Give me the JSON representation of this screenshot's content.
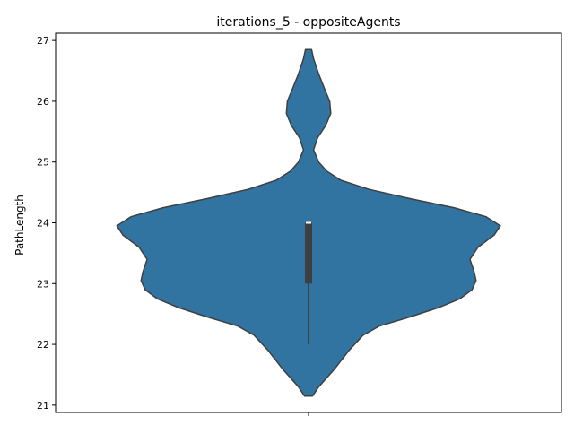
{
  "chart_data": {
    "type": "violin",
    "title": "iterations_5 - oppositeAgents",
    "xlabel": "",
    "ylabel": "PathLength",
    "ylim": [
      20.88,
      27.12
    ],
    "yticks": [
      21,
      22,
      23,
      24,
      25,
      26,
      27
    ],
    "xticks": [
      ""
    ],
    "grid": false,
    "color": "#3274a1",
    "edge_color": "#3f3f3f",
    "box_color": "#3f3f3f",
    "violin": {
      "density_profile": [
        {
          "y": 21.15,
          "w": 0.02
        },
        {
          "y": 21.3,
          "w": 0.05
        },
        {
          "y": 21.6,
          "w": 0.13
        },
        {
          "y": 21.9,
          "w": 0.2
        },
        {
          "y": 22.15,
          "w": 0.27
        },
        {
          "y": 22.3,
          "w": 0.35
        },
        {
          "y": 22.45,
          "w": 0.5
        },
        {
          "y": 22.6,
          "w": 0.64
        },
        {
          "y": 22.75,
          "w": 0.75
        },
        {
          "y": 22.9,
          "w": 0.81
        },
        {
          "y": 23.05,
          "w": 0.83
        },
        {
          "y": 23.2,
          "w": 0.82
        },
        {
          "y": 23.4,
          "w": 0.8
        },
        {
          "y": 23.6,
          "w": 0.84
        },
        {
          "y": 23.8,
          "w": 0.92
        },
        {
          "y": 23.95,
          "w": 0.95
        },
        {
          "y": 24.1,
          "w": 0.88
        },
        {
          "y": 24.25,
          "w": 0.72
        },
        {
          "y": 24.4,
          "w": 0.5
        },
        {
          "y": 24.55,
          "w": 0.3
        },
        {
          "y": 24.7,
          "w": 0.16
        },
        {
          "y": 24.85,
          "w": 0.09
        },
        {
          "y": 25.0,
          "w": 0.05
        },
        {
          "y": 25.2,
          "w": 0.025
        },
        {
          "y": 25.4,
          "w": 0.045
        },
        {
          "y": 25.6,
          "w": 0.085
        },
        {
          "y": 25.8,
          "w": 0.11
        },
        {
          "y": 26.0,
          "w": 0.105
        },
        {
          "y": 26.2,
          "w": 0.08
        },
        {
          "y": 26.45,
          "w": 0.05
        },
        {
          "y": 26.7,
          "w": 0.025
        },
        {
          "y": 26.85,
          "w": 0.015
        }
      ],
      "median": 24,
      "q1": 23,
      "q3": 24,
      "whisker_low": 22,
      "whisker_high": 24
    }
  }
}
